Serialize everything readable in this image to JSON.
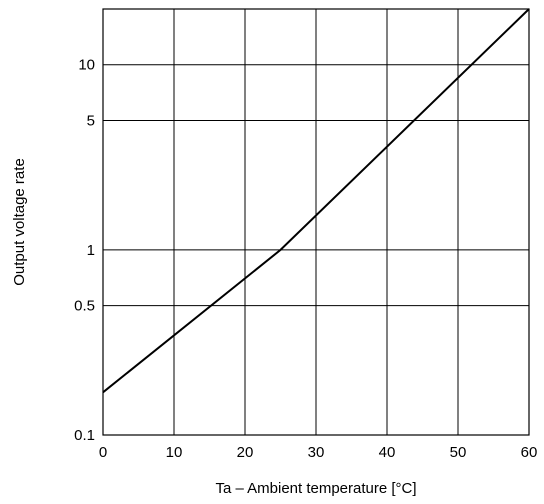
{
  "chart_data": {
    "type": "line",
    "title": "",
    "xlabel": "Ta – Ambient temperature [°C]",
    "ylabel": "Output voltage rate",
    "x_scale": "linear",
    "y_scale": "log",
    "xlim": [
      0,
      60
    ],
    "ylim": [
      0.1,
      20
    ],
    "grid": true,
    "x_ticks": [
      0,
      10,
      20,
      30,
      40,
      50,
      60
    ],
    "x_tick_labels": [
      "0",
      "10",
      "20",
      "30",
      "40",
      "50",
      "60"
    ],
    "y_ticks": [
      0.1,
      0.5,
      1,
      5,
      10
    ],
    "y_tick_labels": [
      "0.1",
      "0.5",
      "1",
      "5",
      "10"
    ],
    "y_grid_values": [
      0.1,
      0.5,
      1,
      5,
      10,
      20
    ],
    "series": [
      {
        "x": [
          0,
          25,
          60
        ],
        "y": [
          0.17,
          1,
          20
        ],
        "color": "#000000"
      }
    ]
  }
}
